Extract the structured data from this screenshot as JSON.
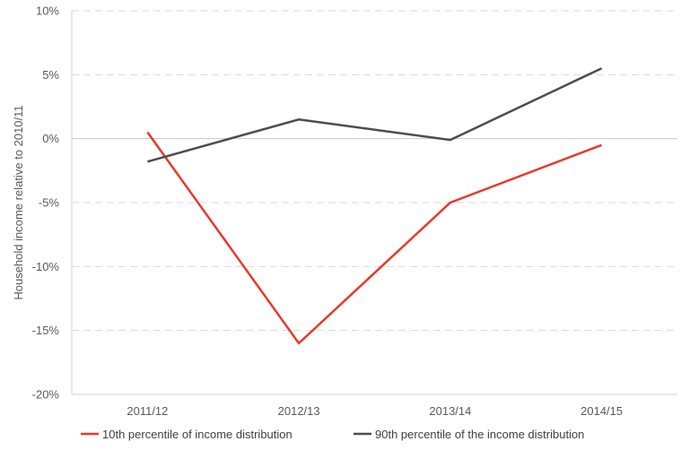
{
  "chart_data": {
    "type": "line",
    "categories": [
      "2011/12",
      "2012/13",
      "2013/14",
      "2014/15"
    ],
    "series": [
      {
        "name": "10th percentile of income distribution",
        "color": "#e8392c",
        "values": [
          0.5,
          -16.0,
          -5.0,
          -0.5
        ]
      },
      {
        "name": "90th percentile of the income distribution",
        "color": "#4d4d4d",
        "values": [
          -1.8,
          1.5,
          -0.1,
          5.5
        ]
      }
    ],
    "title": "",
    "xlabel": "",
    "ylabel": "Household income relative to 2010/11",
    "ylim": [
      -20,
      10
    ],
    "yticks": [
      10,
      5,
      0,
      -5,
      -10,
      -15,
      -20
    ],
    "ytick_labels": [
      "10%",
      "5%",
      "0%",
      "-5%",
      "-10%",
      "-15%",
      "-20%"
    ],
    "grid": true,
    "legend_position": "bottom"
  }
}
